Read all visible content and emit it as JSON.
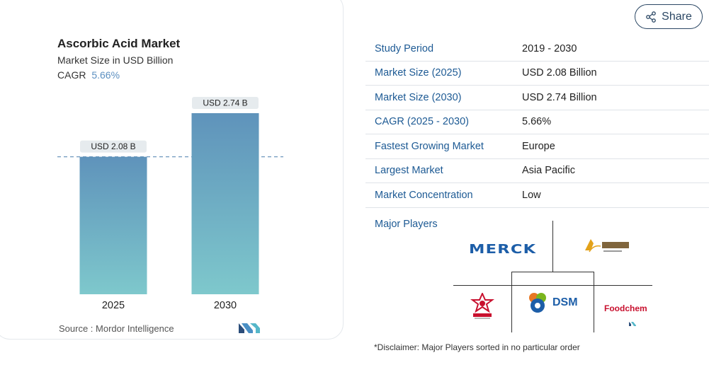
{
  "chart": {
    "title": "Ascorbic Acid Market",
    "subtitle": "Market Size in USD Billion",
    "cagr_label": "CAGR",
    "cagr_value": "5.66%",
    "source": "Source :  Mordor Intelligence"
  },
  "chart_data": {
    "type": "bar",
    "title": "Ascorbic Acid Market",
    "subtitle": "Market Size in USD Billion",
    "categories": [
      "2025",
      "2030"
    ],
    "values": [
      2.08,
      2.74
    ],
    "data_labels": [
      "USD 2.08 B",
      "USD 2.74 B"
    ],
    "ylim": [
      0,
      3.05
    ],
    "reference_line": 2.08,
    "grid": false,
    "colors": {
      "bar_top": "#5f93bb",
      "bar_bottom": "#7ec8cc",
      "label_bg": "#e6ebee",
      "ref_line": "#6e98be"
    }
  },
  "share": {
    "label": "Share",
    "icon": "share-icon"
  },
  "table": {
    "rows": [
      {
        "label": "Study Period",
        "value": "2019 - 2030"
      },
      {
        "label": "Market Size (2025)",
        "value": "USD 2.08 Billion"
      },
      {
        "label": "Market Size (2030)",
        "value": "USD 2.74 Billion"
      },
      {
        "label": "CAGR (2025 - 2030)",
        "value": "5.66%"
      },
      {
        "label": "Fastest Growing Market",
        "value": "Europe"
      },
      {
        "label": "Largest Market",
        "value": "Asia Pacific"
      },
      {
        "label": "Market Concentration",
        "value": "Low"
      }
    ]
  },
  "players": {
    "label": "Major Players",
    "logos": [
      "Merck",
      "Luwei Pharmaceutical",
      "Northeast Pharmaceutical",
      "DSM",
      "Foodchem"
    ]
  },
  "disclaimer": "*Disclaimer: Major Players sorted in no particular order",
  "accent": "#1d5a94"
}
